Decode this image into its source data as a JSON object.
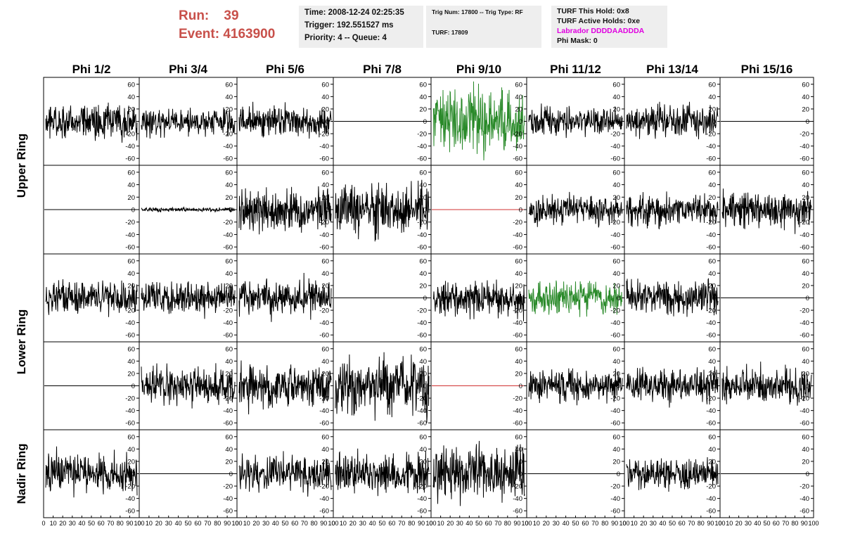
{
  "header": {
    "run_label": "Run:    39",
    "event_label": "Event: 4163900",
    "time": "Time: 2008-12-24 02:25:35",
    "trigger": "Trigger: 192.551527 ms",
    "priority_queue": "Priority: 4 -- Queue: 4",
    "trig_num_type": "Trig Num: 17800 -- Trig Type: RF",
    "turf": "TURF: 17809",
    "turf_this_hold": "TURF This Hold: 0x8",
    "turf_active_holds": "TURF Active Holds: 0xe",
    "labrador": "Labrador DDDDAADDDA",
    "phi_mask": "Phi Mask: 0"
  },
  "colors": {
    "run_text": "#c8504a",
    "labrador_text": "#e000e0",
    "trace_default": "#000000",
    "trace_triggered": "#2a8a2a",
    "trace_flat_red": "#d03030",
    "info_bg": "#eeeeee"
  },
  "chart_data": {
    "type": "line",
    "column_labels": [
      "Phi 1/2",
      "Phi 3/4",
      "Phi 5/6",
      "Phi 7/8",
      "Phi 9/10",
      "Phi 11/12",
      "Phi 13/14",
      "Phi 15/16"
    ],
    "ring_labels": [
      "Upper Ring",
      "Lower Ring",
      "Nadir Ring"
    ],
    "ring_row_spans": [
      [
        0,
        2
      ],
      [
        2,
        4
      ],
      [
        4,
        5
      ]
    ],
    "ylim": [
      -70,
      70
    ],
    "y_ticks": [
      -60,
      -40,
      -20,
      0,
      20,
      40,
      60
    ],
    "xlim": [
      0,
      100
    ],
    "x_tick_labels": [
      "0",
      "10",
      "20",
      "30",
      "40",
      "50",
      "60",
      "70",
      "80",
      "90",
      "100"
    ],
    "grid": false,
    "waveforms": [
      [
        {
          "style": "noise",
          "amp": 16,
          "color": "#000000"
        },
        {
          "style": "noise",
          "amp": 14,
          "color": "#000000"
        },
        {
          "style": "noise",
          "amp": 15,
          "color": "#000000"
        },
        {
          "style": "flat",
          "amp": 0,
          "color": "#000000"
        },
        {
          "style": "noise",
          "amp": 30,
          "color": "#2a8a2a"
        },
        {
          "style": "noise",
          "amp": 14,
          "color": "#000000"
        },
        {
          "style": "noise",
          "amp": 15,
          "color": "#000000"
        },
        {
          "style": "flat",
          "amp": 0,
          "color": "#000000"
        }
      ],
      [
        {
          "style": "flat",
          "amp": 0,
          "color": "#000000"
        },
        {
          "style": "noise",
          "amp": 2,
          "color": "#000000"
        },
        {
          "style": "noise",
          "amp": 20,
          "color": "#000000"
        },
        {
          "style": "noise",
          "amp": 24,
          "color": "#000000"
        },
        {
          "style": "flat",
          "amp": 0,
          "color": "#d03030"
        },
        {
          "style": "noise",
          "amp": 14,
          "color": "#000000"
        },
        {
          "style": "noise",
          "amp": 15,
          "color": "#000000"
        },
        {
          "style": "noise",
          "amp": 17,
          "color": "#000000"
        }
      ],
      [
        {
          "style": "noise",
          "amp": 15,
          "color": "#000000"
        },
        {
          "style": "noise",
          "amp": 16,
          "color": "#000000"
        },
        {
          "style": "noise",
          "amp": 18,
          "color": "#000000"
        },
        {
          "style": "flat",
          "amp": 0,
          "color": "#000000"
        },
        {
          "style": "noise",
          "amp": 17,
          "color": "#000000"
        },
        {
          "style": "noise",
          "amp": 16,
          "color": "#2a8a2a"
        },
        {
          "style": "noise",
          "amp": 16,
          "color": "#000000"
        },
        {
          "style": "flat",
          "amp": 0,
          "color": "#000000"
        }
      ],
      [
        {
          "style": "flat",
          "amp": 0,
          "color": "#000000"
        },
        {
          "style": "noise",
          "amp": 18,
          "color": "#000000"
        },
        {
          "style": "noise",
          "amp": 20,
          "color": "#000000"
        },
        {
          "style": "noise",
          "amp": 28,
          "color": "#000000"
        },
        {
          "style": "flat",
          "amp": 0,
          "color": "#d03030"
        },
        {
          "style": "noise",
          "amp": 16,
          "color": "#000000"
        },
        {
          "style": "noise",
          "amp": 16,
          "color": "#000000"
        },
        {
          "style": "noise",
          "amp": 18,
          "color": "#000000"
        }
      ],
      [
        {
          "style": "noise",
          "amp": 20,
          "color": "#000000"
        },
        {
          "style": "flat",
          "amp": 0,
          "color": "#000000"
        },
        {
          "style": "noise",
          "amp": 17,
          "color": "#000000"
        },
        {
          "style": "noise",
          "amp": 20,
          "color": "#000000"
        },
        {
          "style": "noise",
          "amp": 25,
          "color": "#000000"
        },
        {
          "style": "flat",
          "amp": 0,
          "color": "#000000"
        },
        {
          "style": "noise",
          "amp": 15,
          "color": "#000000"
        },
        {
          "style": "flat",
          "amp": 0,
          "color": "#000000"
        }
      ]
    ]
  }
}
